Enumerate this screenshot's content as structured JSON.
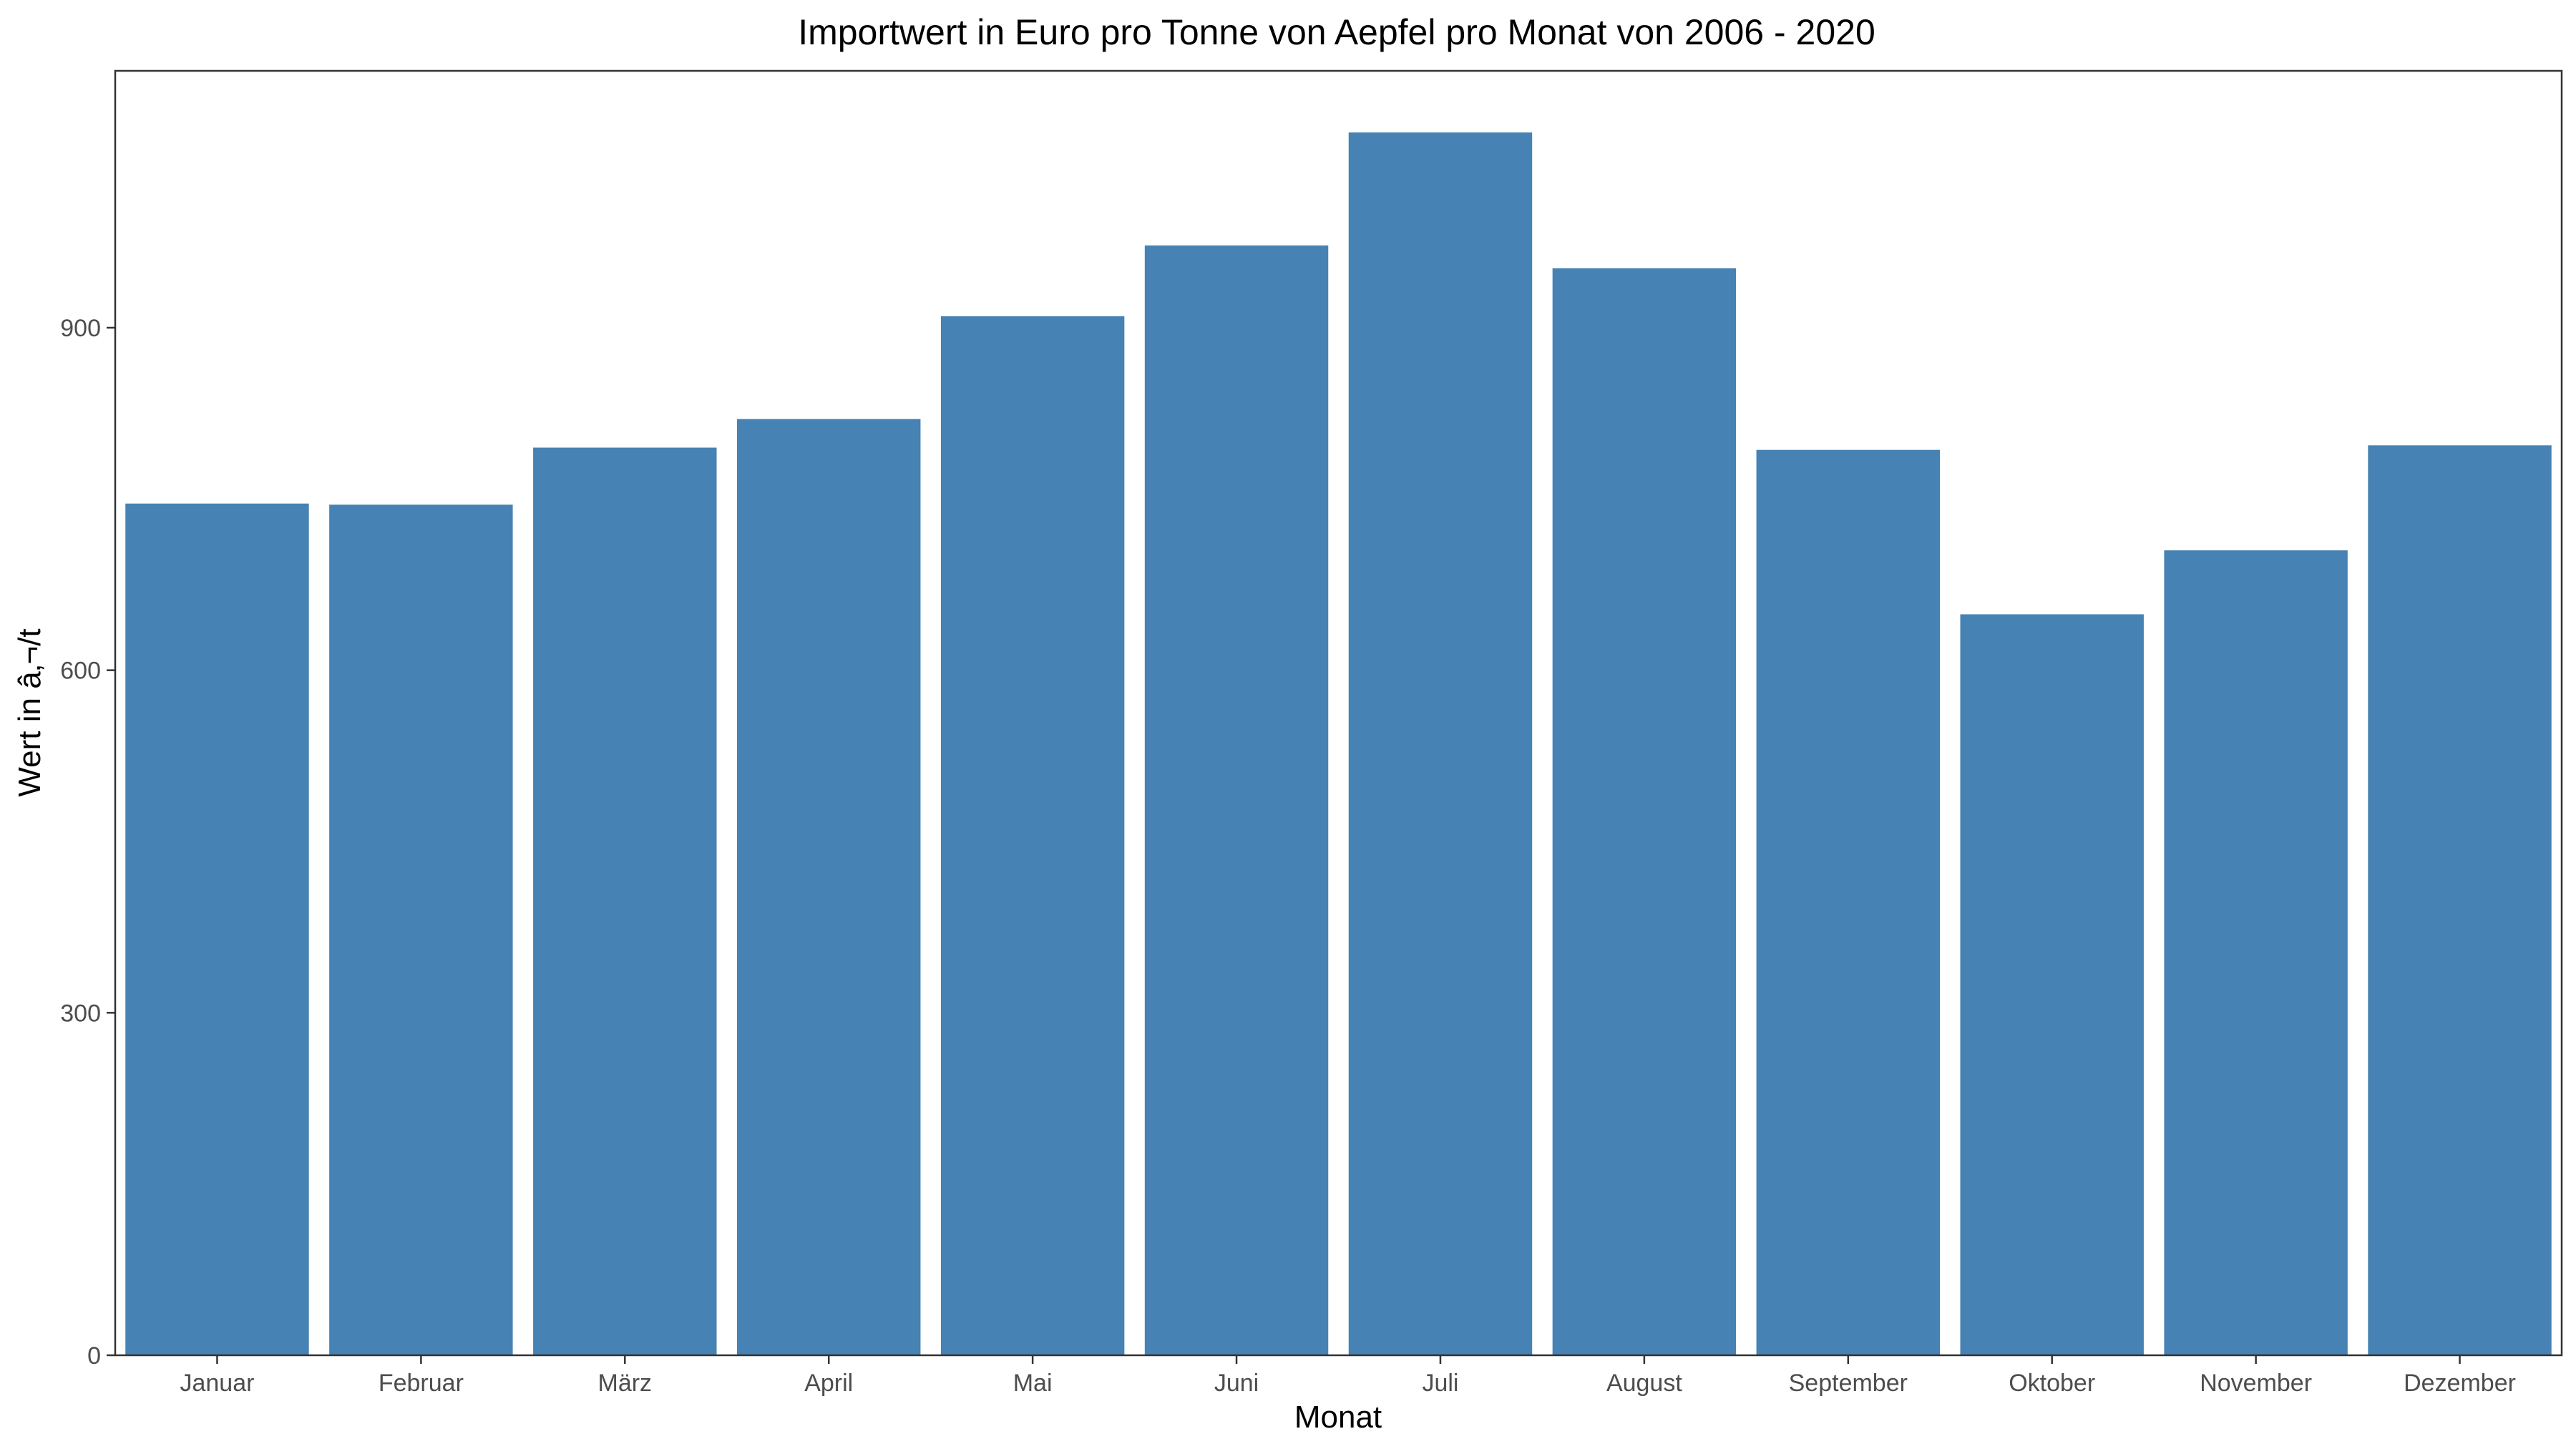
{
  "chart_data": {
    "type": "bar",
    "title": "Importwert in Euro pro Tonne von Aepfel pro Monat von 2006 - 2020",
    "xlabel": "Monat",
    "ylabel": "Wert in â‚¬/t",
    "categories": [
      "Januar",
      "Februar",
      "März",
      "April",
      "Mai",
      "Juni",
      "Juli",
      "August",
      "September",
      "Oktober",
      "November",
      "Dezember"
    ],
    "values": [
      746,
      745,
      795,
      820,
      910,
      972,
      1071,
      952,
      793,
      649,
      705,
      797
    ],
    "ylim": [
      0,
      1125
    ],
    "yticks": [
      0,
      300,
      600,
      900
    ],
    "bar_color": "#4682B4",
    "grid": false,
    "legend": "none"
  }
}
